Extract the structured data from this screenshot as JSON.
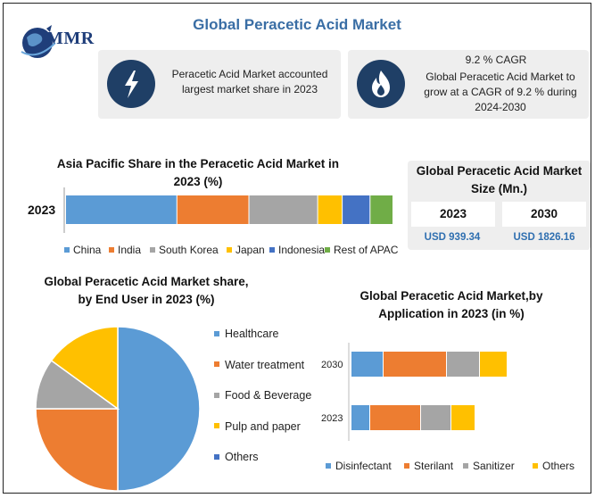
{
  "title": "Global Peracetic Acid Market",
  "logo": {
    "text": "MMR"
  },
  "card1": {
    "text": "Peracetic Acid Market accounted largest market share in 2023"
  },
  "card2": {
    "heading": "9.2 % CAGR",
    "text": "Global Peracetic Acid Market to grow at a CAGR of 9.2 % during 2024-2030"
  },
  "market_size": {
    "title": "Global Peracetic Acid Market Size (Mn.)",
    "year1": "2023",
    "year2": "2030",
    "value1": "USD 939.34",
    "value2": "USD 1826.16"
  },
  "colors": {
    "blue": "#5b9bd5",
    "orange": "#ed7d31",
    "gray": "#a5a5a5",
    "yellow": "#ffc000",
    "darkblue": "#4472c4",
    "green": "#70ad47",
    "navy": "#1f3f66"
  },
  "chart_data": [
    {
      "type": "bar",
      "orientation": "horizontal-stacked",
      "title": "Asia Pacific Share in the Peracetic Acid Market in 2023 (%)",
      "categories": [
        "2023"
      ],
      "series": [
        {
          "name": "China",
          "values": [
            34
          ]
        },
        {
          "name": "India",
          "values": [
            22
          ]
        },
        {
          "name": "South Korea",
          "values": [
            21
          ]
        },
        {
          "name": "Japan",
          "values": [
            7.5
          ]
        },
        {
          "name": "Indonesia",
          "values": [
            8.5
          ]
        },
        {
          "name": "Rest of APAC",
          "values": [
            7
          ]
        }
      ],
      "legend": "bottom"
    },
    {
      "type": "pie",
      "title": "Global Peracetic Acid  Market share, by End User in 2023  (%)",
      "labels": [
        "Healthcare",
        "Water treatment",
        "Food & Beverage",
        "Pulp and paper",
        "Others"
      ],
      "values": [
        50,
        25,
        10,
        15,
        0
      ],
      "legend": "right"
    },
    {
      "type": "bar",
      "orientation": "horizontal-stacked",
      "title": "Global Peracetic Acid Market,by Application in 2023 (in %)",
      "categories": [
        "2030",
        "2023"
      ],
      "series": [
        {
          "name": "Disinfectant",
          "values": [
            36,
            21
          ]
        },
        {
          "name": "Sterilant",
          "values": [
            71,
            57
          ]
        },
        {
          "name": "Sanitizer",
          "values": [
            37,
            34
          ]
        },
        {
          "name": "Others",
          "values": [
            31,
            27
          ]
        }
      ],
      "legend": "bottom"
    }
  ]
}
